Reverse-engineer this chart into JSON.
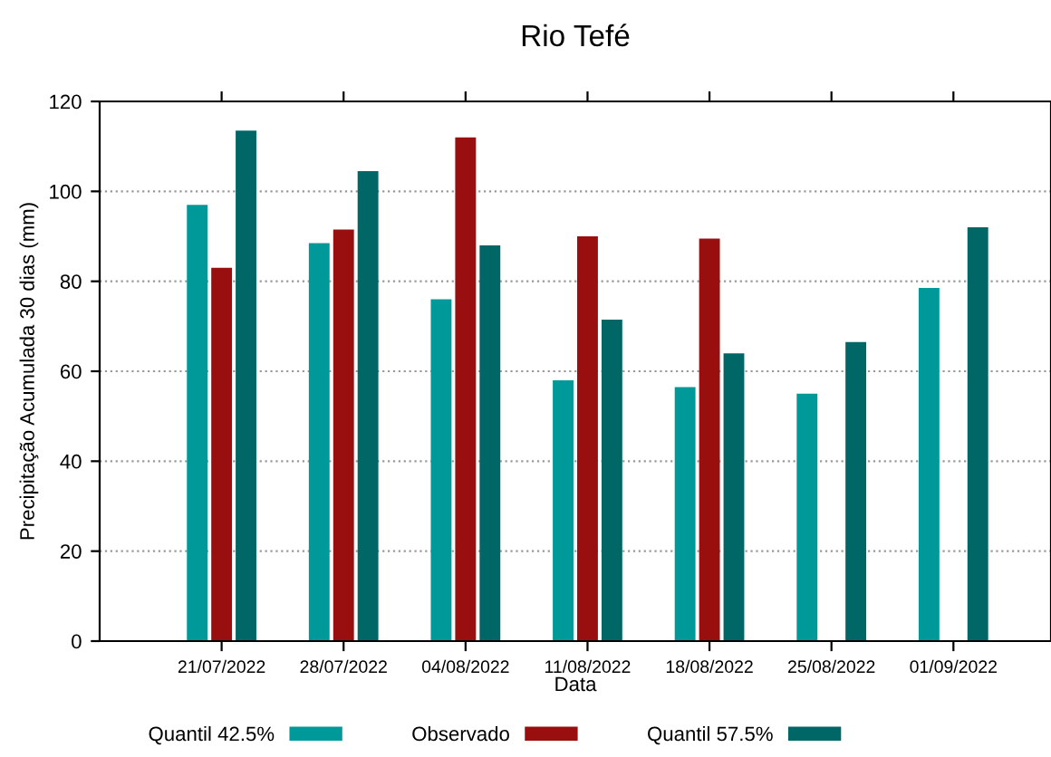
{
  "chart_data": {
    "type": "bar",
    "title": "Rio Tefé",
    "xlabel": "Data",
    "ylabel": "Precipitação Acumulada 30 dias (mm)",
    "categories": [
      "21/07/2022",
      "28/07/2022",
      "04/08/2022",
      "11/08/2022",
      "18/08/2022",
      "25/08/2022",
      "01/09/2022"
    ],
    "series": [
      {
        "name": "Quantil 42.5%",
        "color": "#009999",
        "values": [
          97,
          88.5,
          76,
          58,
          56.5,
          55,
          78.5
        ]
      },
      {
        "name": "Observado",
        "color": "#990f0f",
        "values": [
          83,
          91.5,
          112,
          90,
          89.5,
          null,
          null
        ]
      },
      {
        "name": "Quantil 57.5%",
        "color": "#006666",
        "values": [
          113.5,
          104.5,
          88,
          71.5,
          64,
          66.5,
          92
        ]
      }
    ],
    "ylim": [
      0,
      120
    ],
    "yticks": [
      0,
      20,
      40,
      60,
      80,
      100,
      120
    ],
    "grid": "y",
    "legend": "bottom"
  }
}
